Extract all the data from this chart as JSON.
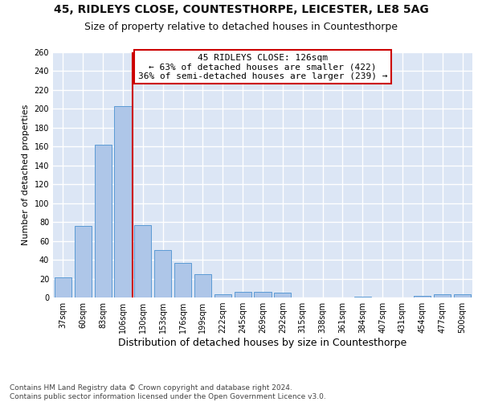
{
  "title1": "45, RIDLEYS CLOSE, COUNTESTHORPE, LEICESTER, LE8 5AG",
  "title2": "Size of property relative to detached houses in Countesthorpe",
  "xlabel": "Distribution of detached houses by size in Countesthorpe",
  "ylabel": "Number of detached properties",
  "footnote": "Contains HM Land Registry data © Crown copyright and database right 2024.\nContains public sector information licensed under the Open Government Licence v3.0.",
  "bar_labels": [
    "37sqm",
    "60sqm",
    "83sqm",
    "106sqm",
    "130sqm",
    "153sqm",
    "176sqm",
    "199sqm",
    "222sqm",
    "245sqm",
    "269sqm",
    "292sqm",
    "315sqm",
    "338sqm",
    "361sqm",
    "384sqm",
    "407sqm",
    "431sqm",
    "454sqm",
    "477sqm",
    "500sqm"
  ],
  "bar_values": [
    21,
    76,
    162,
    203,
    77,
    50,
    37,
    25,
    3,
    6,
    6,
    5,
    0,
    0,
    0,
    1,
    0,
    0,
    2,
    3,
    3
  ],
  "bar_color": "#aec6e8",
  "bar_edge_color": "#5b9bd5",
  "vline_x": 3.5,
  "vline_color": "#cc0000",
  "annotation_line1": "45 RIDLEYS CLOSE: 126sqm",
  "annotation_line2": "← 63% of detached houses are smaller (422)",
  "annotation_line3": "36% of semi-detached houses are larger (239) →",
  "annotation_box_facecolor": "#ffffff",
  "annotation_box_edge_color": "#cc0000",
  "ylim": [
    0,
    260
  ],
  "yticks": [
    0,
    20,
    40,
    60,
    80,
    100,
    120,
    140,
    160,
    180,
    200,
    220,
    240,
    260
  ],
  "background_color": "#dce6f5",
  "grid_color": "#ffffff",
  "title1_fontsize": 10,
  "title2_fontsize": 9,
  "xlabel_fontsize": 9,
  "ylabel_fontsize": 8,
  "tick_fontsize": 7,
  "annotation_fontsize": 8,
  "footnote_fontsize": 6.5
}
